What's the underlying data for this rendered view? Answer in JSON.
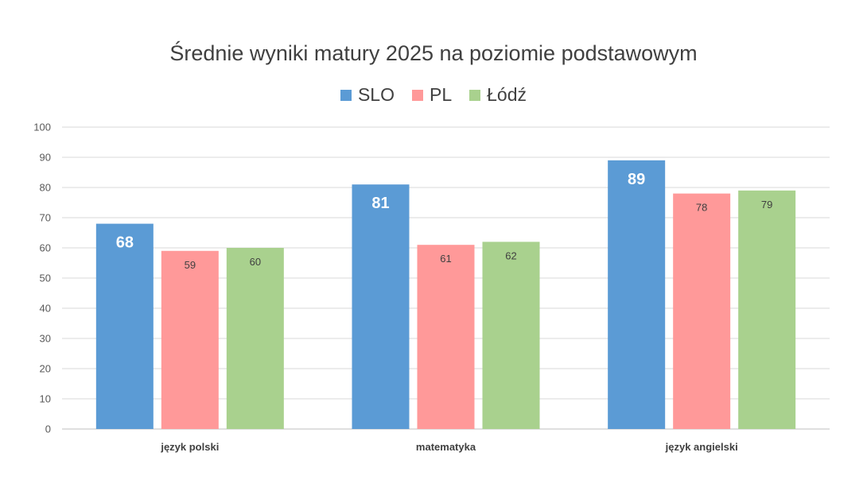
{
  "chart_data": {
    "type": "bar",
    "title": "Średnie wyniki matury 2025 na poziomie podstawowym",
    "categories": [
      "język polski",
      "matematyka",
      "język angielski"
    ],
    "series": [
      {
        "name": "SLO",
        "values": [
          68,
          81,
          89
        ],
        "color": "#5B9BD5"
      },
      {
        "name": "PL",
        "values": [
          59,
          61,
          78
        ],
        "color": "#FF9999"
      },
      {
        "name": "Łódź",
        "values": [
          60,
          62,
          79
        ],
        "color": "#A9D18E"
      }
    ],
    "ylim": [
      0,
      100
    ],
    "yticks": [
      0,
      10,
      20,
      30,
      40,
      50,
      60,
      70,
      80,
      90,
      100
    ],
    "grid": true,
    "legend_position": "top"
  }
}
